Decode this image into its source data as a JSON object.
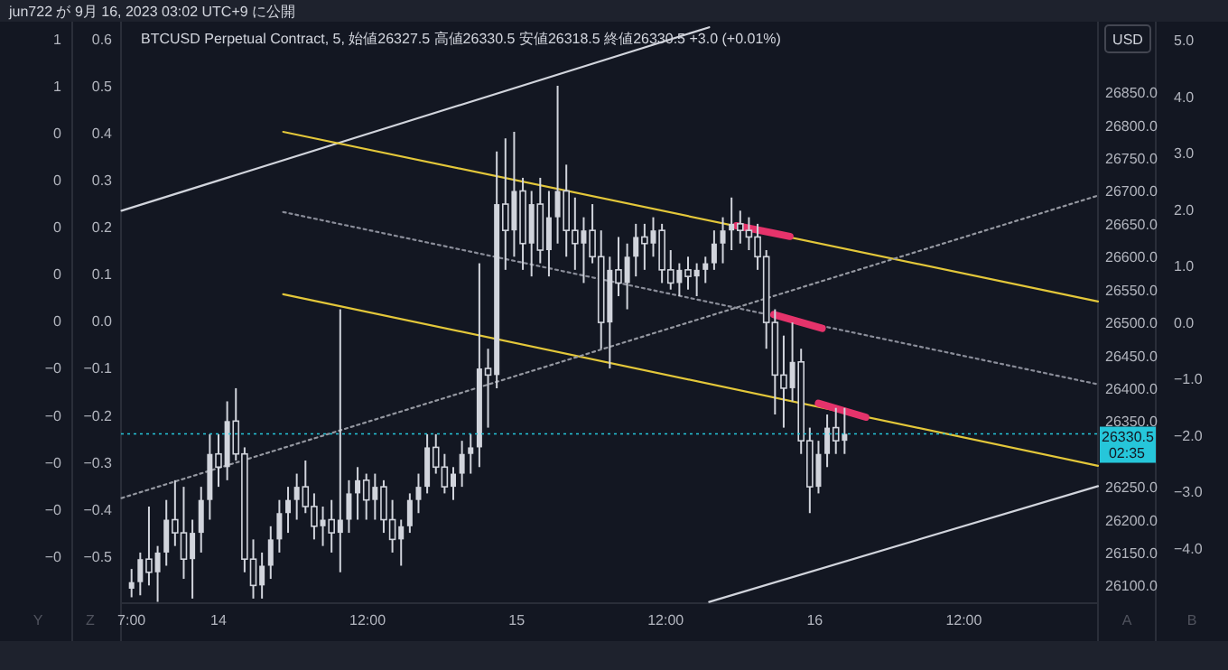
{
  "chart_data": {
    "type": "candlestick",
    "title": "BTCUSD Perpetual Contract, 5, 始値26327.5 高値26330.5 安値26318.5 終値26330.5 +3.0 (+0.01%)",
    "subtitle": "jun722 が 9月 16, 2023 03:02 UTC+9 に公開",
    "ylabel": "USD",
    "color": "#d1d4dc",
    "x": [
      "2023-09-13T17:00",
      "2023-09-13T17:42",
      "2023-09-13T18:24",
      "2023-09-13T19:06",
      "2023-09-13T19:48",
      "2023-09-13T20:30",
      "2023-09-13T21:12",
      "2023-09-13T21:54",
      "2023-09-13T22:36",
      "2023-09-13T23:18",
      "2023-09-14T00:00",
      "2023-09-14T00:42",
      "2023-09-14T01:24",
      "2023-09-14T02:06",
      "2023-09-14T02:48",
      "2023-09-14T03:30",
      "2023-09-14T04:12",
      "2023-09-14T04:54",
      "2023-09-14T05:36",
      "2023-09-14T06:18",
      "2023-09-14T07:00",
      "2023-09-14T07:42",
      "2023-09-14T08:24",
      "2023-09-14T09:06",
      "2023-09-14T09:48",
      "2023-09-14T10:30",
      "2023-09-14T11:12",
      "2023-09-14T11:54",
      "2023-09-14T12:36",
      "2023-09-14T13:18",
      "2023-09-14T14:00",
      "2023-09-14T14:42",
      "2023-09-14T15:24",
      "2023-09-14T16:06",
      "2023-09-14T16:48",
      "2023-09-14T17:30",
      "2023-09-14T18:12",
      "2023-09-14T18:54",
      "2023-09-14T19:36",
      "2023-09-14T20:18",
      "2023-09-14T21:00",
      "2023-09-14T21:42",
      "2023-09-14T22:24",
      "2023-09-14T23:06",
      "2023-09-14T23:48",
      "2023-09-15T00:30",
      "2023-09-15T01:12",
      "2023-09-15T01:54",
      "2023-09-15T02:36",
      "2023-09-15T03:18",
      "2023-09-15T04:00",
      "2023-09-15T04:42",
      "2023-09-15T05:24",
      "2023-09-15T06:06",
      "2023-09-15T06:48",
      "2023-09-15T07:30",
      "2023-09-15T08:12",
      "2023-09-15T08:54",
      "2023-09-15T09:36",
      "2023-09-15T10:18",
      "2023-09-15T11:00",
      "2023-09-15T11:42",
      "2023-09-15T12:24",
      "2023-09-15T13:06",
      "2023-09-15T13:48",
      "2023-09-15T14:30",
      "2023-09-15T15:12",
      "2023-09-15T15:54",
      "2023-09-15T16:36",
      "2023-09-15T17:18",
      "2023-09-15T18:00",
      "2023-09-15T18:42",
      "2023-09-15T19:24",
      "2023-09-15T20:06",
      "2023-09-15T20:48",
      "2023-09-15T21:30",
      "2023-09-15T22:12",
      "2023-09-15T22:54",
      "2023-09-15T23:36",
      "2023-09-16T00:18",
      "2023-09-16T01:00",
      "2023-09-16T01:42",
      "2023-09-16T02:24"
    ],
    "ohlc": [
      [
        26095,
        26125,
        26082,
        26105
      ],
      [
        26105,
        26150,
        26085,
        26140
      ],
      [
        26140,
        26220,
        26100,
        26120
      ],
      [
        26120,
        26160,
        26075,
        26150
      ],
      [
        26150,
        26230,
        26130,
        26200
      ],
      [
        26200,
        26260,
        26160,
        26180
      ],
      [
        26180,
        26250,
        26110,
        26140
      ],
      [
        26140,
        26200,
        26080,
        26180
      ],
      [
        26180,
        26250,
        26150,
        26230
      ],
      [
        26230,
        26330,
        26200,
        26300
      ],
      [
        26300,
        26330,
        26250,
        26280
      ],
      [
        26280,
        26380,
        26260,
        26350
      ],
      [
        26350,
        26400,
        26290,
        26300
      ],
      [
        26300,
        26310,
        26120,
        26140
      ],
      [
        26140,
        26170,
        26080,
        26100
      ],
      [
        26100,
        26150,
        26080,
        26130
      ],
      [
        26130,
        26190,
        26110,
        26170
      ],
      [
        26170,
        26230,
        26150,
        26210
      ],
      [
        26210,
        26250,
        26180,
        26230
      ],
      [
        26230,
        26270,
        26200,
        26250
      ],
      [
        26250,
        26290,
        26210,
        26220
      ],
      [
        26220,
        26240,
        26170,
        26190
      ],
      [
        26190,
        26220,
        26160,
        26200
      ],
      [
        26200,
        26230,
        26150,
        26180
      ],
      [
        26180,
        26520,
        26120,
        26200
      ],
      [
        26200,
        26260,
        26180,
        26240
      ],
      [
        26240,
        26280,
        26200,
        26260
      ],
      [
        26260,
        26270,
        26200,
        26230
      ],
      [
        26230,
        26270,
        26200,
        26250
      ],
      [
        26250,
        26260,
        26180,
        26200
      ],
      [
        26200,
        26230,
        26150,
        26170
      ],
      [
        26170,
        26200,
        26130,
        26190
      ],
      [
        26190,
        26240,
        26180,
        26230
      ],
      [
        26230,
        26270,
        26210,
        26250
      ],
      [
        26250,
        26330,
        26240,
        26310
      ],
      [
        26310,
        26330,
        26270,
        26280
      ],
      [
        26280,
        26300,
        26240,
        26250
      ],
      [
        26250,
        26280,
        26230,
        26270
      ],
      [
        26270,
        26320,
        26250,
        26300
      ],
      [
        26300,
        26330,
        26270,
        26310
      ],
      [
        26310,
        26590,
        26280,
        26430
      ],
      [
        26430,
        26460,
        26340,
        26420
      ],
      [
        26420,
        26760,
        26400,
        26680
      ],
      [
        26680,
        26780,
        26580,
        26640
      ],
      [
        26640,
        26790,
        26600,
        26700
      ],
      [
        26700,
        26720,
        26580,
        26620
      ],
      [
        26620,
        26700,
        26570,
        26680
      ],
      [
        26680,
        26720,
        26590,
        26610
      ],
      [
        26610,
        26700,
        26570,
        26660
      ],
      [
        26660,
        26860,
        26620,
        26700
      ],
      [
        26700,
        26740,
        26600,
        26640
      ],
      [
        26640,
        26690,
        26580,
        26620
      ],
      [
        26620,
        26660,
        26560,
        26640
      ],
      [
        26640,
        26680,
        26590,
        26600
      ],
      [
        26600,
        26640,
        26460,
        26500
      ],
      [
        26500,
        26600,
        26430,
        26580
      ],
      [
        26580,
        26630,
        26540,
        26560
      ],
      [
        26560,
        26620,
        26520,
        26600
      ],
      [
        26600,
        26650,
        26570,
        26630
      ],
      [
        26630,
        26650,
        26580,
        26620
      ],
      [
        26620,
        26660,
        26600,
        26640
      ],
      [
        26640,
        26650,
        26560,
        26580
      ],
      [
        26580,
        26610,
        26550,
        26560
      ],
      [
        26560,
        26590,
        26540,
        26580
      ],
      [
        26580,
        26600,
        26550,
        26570
      ],
      [
        26570,
        26590,
        26540,
        26580
      ],
      [
        26580,
        26600,
        26560,
        26590
      ],
      [
        26590,
        26640,
        26580,
        26620
      ],
      [
        26620,
        26660,
        26590,
        26640
      ],
      [
        26640,
        26690,
        26610,
        26650
      ],
      [
        26650,
        26670,
        26620,
        26640
      ],
      [
        26640,
        26660,
        26610,
        26630
      ],
      [
        26630,
        26650,
        26580,
        26600
      ],
      [
        26600,
        26610,
        26460,
        26500
      ],
      [
        26500,
        26520,
        26360,
        26420
      ],
      [
        26420,
        26480,
        26340,
        26400
      ],
      [
        26400,
        26500,
        26380,
        26440
      ],
      [
        26440,
        26460,
        26300,
        26320
      ],
      [
        26320,
        26340,
        26210,
        26250
      ],
      [
        26250,
        26320,
        26240,
        26300
      ],
      [
        26300,
        26360,
        26280,
        26340
      ],
      [
        26340,
        26370,
        26300,
        26320
      ],
      [
        26320,
        26370,
        26300,
        26330.5
      ]
    ],
    "series": [
      {
        "type": "line",
        "x": [
          "2023-09-13T16:12",
          "2023-09-15T15:30"
        ],
        "values": [
          26670,
          26949
        ],
        "color": "#d1d4dc",
        "line_style": "solid"
      },
      {
        "type": "line",
        "x": [
          "2023-09-14T05:12",
          "2023-09-16T22:48"
        ],
        "values": [
          26790,
          26532
        ],
        "color": "#e3c73a",
        "line_style": "solid"
      },
      {
        "type": "line",
        "x": [
          "2023-09-14T05:12",
          "2023-09-16T22:48"
        ],
        "values": [
          26668,
          26406
        ],
        "color": "#8a8d99",
        "line_style": "dotted"
      },
      {
        "type": "line",
        "x": [
          "2023-09-14T05:12",
          "2023-09-16T22:48"
        ],
        "values": [
          26543,
          26282
        ],
        "color": "#e3c73a",
        "line_style": "solid"
      },
      {
        "type": "line",
        "x": [
          "2023-09-13T16:12",
          "2023-09-16T22:48"
        ],
        "values": [
          26233,
          26693
        ],
        "color": "#9598a1",
        "line_style": "dotted"
      },
      {
        "type": "line",
        "x": [
          "2023-09-15T15:30",
          "2023-09-16T22:48"
        ],
        "values": [
          26075,
          26251
        ],
        "color": "#d1d4dc",
        "line_style": "solid"
      },
      {
        "type": "line",
        "x": [
          "2023-09-15T17:42",
          "2023-09-15T22:00"
        ],
        "values": [
          26647,
          26631
        ],
        "color": "#e5336b",
        "line_style": "solid"
      },
      {
        "type": "line",
        "x": [
          "2023-09-15T20:42",
          "2023-09-16T00:36"
        ],
        "values": [
          26512,
          26491
        ],
        "color": "#e5336b",
        "line_style": "solid"
      },
      {
        "type": "line",
        "x": [
          "2023-09-16T00:18",
          "2023-09-16T04:06"
        ],
        "values": [
          26377,
          26356
        ],
        "color": "#e5336b",
        "line_style": "solid"
      }
    ],
    "xlim": [
      "2023-09-13T16:09",
      "2023-09-16T22:48"
    ],
    "xticks": [
      {
        "value": "2023-09-13T17:00",
        "label": "7:00"
      },
      {
        "value": "2023-09-14",
        "label": "14"
      },
      {
        "value": "2023-09-14T12:00",
        "label": "12:00"
      },
      {
        "value": "2023-09-15",
        "label": "15"
      },
      {
        "value": "2023-09-15T12:00",
        "label": "12:00"
      },
      {
        "value": "2023-09-16",
        "label": "16"
      },
      {
        "value": "2023-09-16T12:00",
        "label": "12:00"
      }
    ],
    "ylim": [
      26073,
      26952
    ],
    "yticks": [
      {
        "value": 26100,
        "label": "26100.0"
      },
      {
        "value": 26150,
        "label": "26150.0"
      },
      {
        "value": 26200,
        "label": "26200.0"
      },
      {
        "value": 26250,
        "label": "26250.0"
      },
      {
        "value": 26350,
        "label": "26350.0"
      },
      {
        "value": 26400,
        "label": "26400.0"
      },
      {
        "value": 26450,
        "label": "26450.0"
      },
      {
        "value": 26500,
        "label": "26500.0"
      },
      {
        "value": 26550,
        "label": "26550.0"
      },
      {
        "value": 26600,
        "label": "26600.0"
      },
      {
        "value": 26650,
        "label": "26650.0"
      },
      {
        "value": 26700,
        "label": "26700.0"
      },
      {
        "value": 26750,
        "label": "26750.0"
      },
      {
        "value": 26800,
        "label": "26800.0"
      },
      {
        "value": 26850,
        "label": "26850.0"
      }
    ],
    "y2lim": [
      -4.98,
      5.26
    ],
    "y2ticks": [
      {
        "value": 5,
        "label": "5.0"
      },
      {
        "value": 4,
        "label": "4.0"
      },
      {
        "value": 3,
        "label": "3.0"
      },
      {
        "value": 2,
        "label": "2.0"
      },
      {
        "value": 1,
        "label": "1.0"
      },
      {
        "value": 0,
        "label": "0.0"
      },
      {
        "value": -1,
        "label": "−1.0"
      },
      {
        "value": -2,
        "label": "−2.0"
      },
      {
        "value": -3,
        "label": "−3.0"
      },
      {
        "value": -4,
        "label": "−4.0"
      }
    ],
    "y3lim": [
      -0.6,
      0.628
    ],
    "y3ticks": [
      {
        "value": 0.6,
        "label": "0.6"
      },
      {
        "value": 0.5,
        "label": "0.5"
      },
      {
        "value": 0.4,
        "label": "0.4"
      },
      {
        "value": 0.3,
        "label": "0.3"
      },
      {
        "value": 0.2,
        "label": "0.2"
      },
      {
        "value": 0.1,
        "label": "0.1"
      },
      {
        "value": 0,
        "label": "0.0"
      },
      {
        "value": -0.1,
        "label": "−0.1"
      },
      {
        "value": -0.2,
        "label": "−0.2"
      },
      {
        "value": -0.3,
        "label": "−0.3"
      },
      {
        "value": -0.4,
        "label": "−0.4"
      },
      {
        "value": -0.5,
        "label": "−0.5"
      }
    ],
    "ref_lines": [
      {
        "axis": "y",
        "value": 26330.5,
        "label": "26330.5",
        "color": "#26c6da",
        "line_style": "dotted"
      }
    ],
    "annotations": [
      "02:35",
      "Y",
      "Z",
      "A",
      "B",
      "1",
      "1",
      "0",
      "0",
      "0",
      "0",
      "0",
      "−0",
      "−0",
      "−0",
      "−0",
      "−0"
    ],
    "grid": false
  }
}
